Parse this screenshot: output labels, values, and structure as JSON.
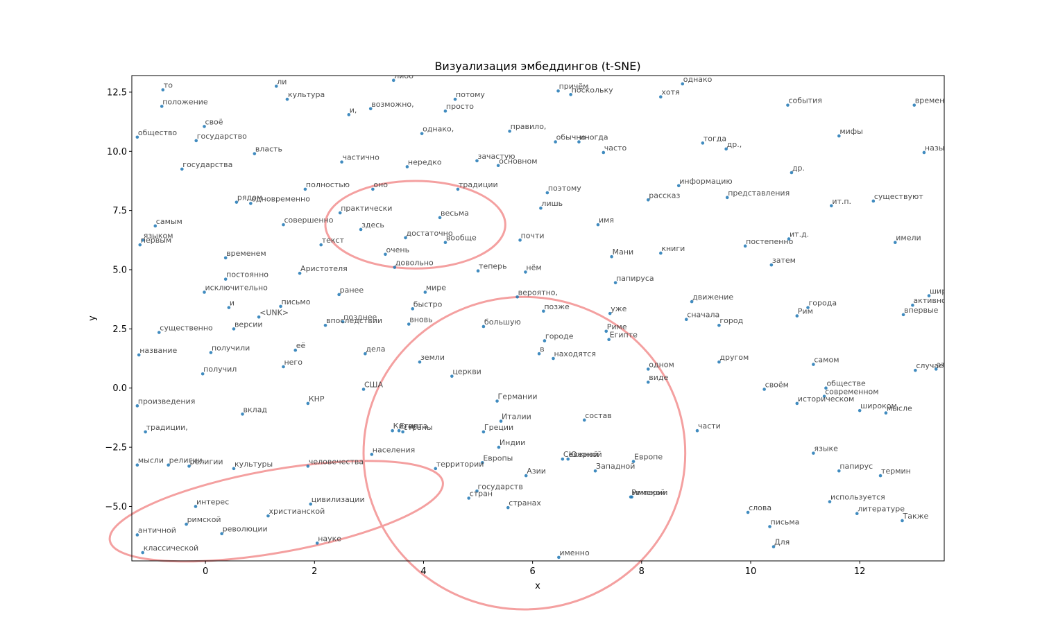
{
  "chart_data": {
    "type": "scatter",
    "title": "Визуализация эмбеддингов (t-SNE)",
    "xlabel": "x",
    "ylabel": "y",
    "xlim": [
      -1.35,
      13.55
    ],
    "ylim": [
      -7.3,
      13.2
    ],
    "xticks": [
      0,
      2,
      4,
      6,
      8,
      10,
      12
    ],
    "yticks": [
      -5.0,
      -2.5,
      0.0,
      2.5,
      5.0,
      7.5,
      10.0,
      12.5
    ],
    "xtick_labels": [
      "0",
      "2",
      "4",
      "6",
      "8",
      "10",
      "12"
    ],
    "ytick_labels": [
      "−5.0",
      "−2.5",
      "0.0",
      "2.5",
      "5.0",
      "7.5",
      "10.0",
      "12.5"
    ],
    "grid": false,
    "point_color": "#1f77b4",
    "highlight_color": "#f4a0a0",
    "highlight_ellipses": [
      {
        "cx": 3.85,
        "cy": 6.9,
        "rx": 1.65,
        "ry": 1.85,
        "rotation": 0
      },
      {
        "cx": 5.85,
        "cy": -2.75,
        "rx": 2.95,
        "ry": 6.6,
        "rotation": 0
      },
      {
        "cx": 1.3,
        "cy": -5.2,
        "rx": 3.1,
        "ry": 1.75,
        "rotation": 10
      }
    ],
    "points": [
      {
        "label": "то",
        "x": -0.78,
        "y": 12.6
      },
      {
        "label": "ли",
        "x": 1.3,
        "y": 12.75
      },
      {
        "label": "либо",
        "x": 3.45,
        "y": 13.0
      },
      {
        "label": "культура",
        "x": 1.5,
        "y": 12.2
      },
      {
        "label": "положение",
        "x": -0.8,
        "y": 11.9
      },
      {
        "label": "своё",
        "x": -0.02,
        "y": 11.05
      },
      {
        "label": "и,",
        "x": 2.63,
        "y": 11.55
      },
      {
        "label": "возможно,",
        "x": 3.03,
        "y": 11.8
      },
      {
        "label": "потому",
        "x": 4.58,
        "y": 12.2
      },
      {
        "label": "просто",
        "x": 4.4,
        "y": 11.7
      },
      {
        "label": "причём",
        "x": 6.47,
        "y": 12.55
      },
      {
        "label": "поскольку",
        "x": 6.7,
        "y": 12.4
      },
      {
        "label": "хотя",
        "x": 8.35,
        "y": 12.3
      },
      {
        "label": "однако",
        "x": 8.75,
        "y": 12.85
      },
      {
        "label": "события",
        "x": 10.68,
        "y": 11.95
      },
      {
        "label": "времена",
        "x": 13.0,
        "y": 11.95
      },
      {
        "label": "общество",
        "x": -1.25,
        "y": 10.6
      },
      {
        "label": "государство",
        "x": -0.17,
        "y": 10.45
      },
      {
        "label": "однако,",
        "x": 3.97,
        "y": 10.75
      },
      {
        "label": "правило,",
        "x": 5.58,
        "y": 10.85
      },
      {
        "label": "обычно",
        "x": 6.42,
        "y": 10.4
      },
      {
        "label": "иногда",
        "x": 6.85,
        "y": 10.4
      },
      {
        "label": "тогда",
        "x": 9.12,
        "y": 10.35
      },
      {
        "label": "др.,",
        "x": 9.55,
        "y": 10.1
      },
      {
        "label": "мифы",
        "x": 11.62,
        "y": 10.65
      },
      {
        "label": "власть",
        "x": 0.9,
        "y": 9.9
      },
      {
        "label": "часто",
        "x": 7.3,
        "y": 9.95
      },
      {
        "label": "называют",
        "x": 13.18,
        "y": 9.95
      },
      {
        "label": "частично",
        "x": 2.5,
        "y": 9.55
      },
      {
        "label": "зачастую",
        "x": 4.98,
        "y": 9.6
      },
      {
        "label": "нередко",
        "x": 3.7,
        "y": 9.35
      },
      {
        "label": "основном",
        "x": 5.37,
        "y": 9.4
      },
      {
        "label": "государства",
        "x": -0.43,
        "y": 9.25
      },
      {
        "label": "др.",
        "x": 10.75,
        "y": 9.1
      },
      {
        "label": "полностью",
        "x": 1.83,
        "y": 8.4
      },
      {
        "label": "оно",
        "x": 3.07,
        "y": 8.4
      },
      {
        "label": "традиции",
        "x": 4.63,
        "y": 8.4
      },
      {
        "label": "поэтому",
        "x": 6.27,
        "y": 8.25
      },
      {
        "label": "информацию",
        "x": 8.68,
        "y": 8.55
      },
      {
        "label": "рассказ",
        "x": 8.12,
        "y": 7.95
      },
      {
        "label": "представления",
        "x": 9.57,
        "y": 8.05
      },
      {
        "label": "рядом",
        "x": 0.57,
        "y": 7.85
      },
      {
        "label": "одновременно",
        "x": 0.83,
        "y": 7.8
      },
      {
        "label": "лишь",
        "x": 6.15,
        "y": 7.6
      },
      {
        "label": "ит.п.",
        "x": 11.48,
        "y": 7.7
      },
      {
        "label": "существуют",
        "x": 12.25,
        "y": 7.9
      },
      {
        "label": "практически",
        "x": 2.47,
        "y": 7.4
      },
      {
        "label": "весьма",
        "x": 4.3,
        "y": 7.2
      },
      {
        "label": "самым",
        "x": -0.92,
        "y": 6.85
      },
      {
        "label": "совершенно",
        "x": 1.43,
        "y": 6.9
      },
      {
        "label": "здесь",
        "x": 2.85,
        "y": 6.7
      },
      {
        "label": "имя",
        "x": 7.2,
        "y": 6.9
      },
      {
        "label": "достаточно",
        "x": 3.67,
        "y": 6.35
      },
      {
        "label": "вообще",
        "x": 4.4,
        "y": 6.15
      },
      {
        "label": "почти",
        "x": 5.77,
        "y": 6.25
      },
      {
        "label": "ит.д.",
        "x": 10.7,
        "y": 6.3
      },
      {
        "label": "языком",
        "x": -1.15,
        "y": 6.25
      },
      {
        "label": "первым",
        "x": -1.2,
        "y": 6.05
      },
      {
        "label": "текст",
        "x": 2.12,
        "y": 6.05
      },
      {
        "label": "постепенно",
        "x": 9.9,
        "y": 6.0
      },
      {
        "label": "имели",
        "x": 12.65,
        "y": 6.15
      },
      {
        "label": "очень",
        "x": 3.3,
        "y": 5.65
      },
      {
        "label": "Мани",
        "x": 7.45,
        "y": 5.55
      },
      {
        "label": "книги",
        "x": 8.35,
        "y": 5.7
      },
      {
        "label": "временем",
        "x": 0.37,
        "y": 5.5
      },
      {
        "label": "затем",
        "x": 10.38,
        "y": 5.2
      },
      {
        "label": "довольно",
        "x": 3.47,
        "y": 5.1
      },
      {
        "label": "Аристотеля",
        "x": 1.73,
        "y": 4.85
      },
      {
        "label": "теперь",
        "x": 5.0,
        "y": 4.95
      },
      {
        "label": "нём",
        "x": 5.87,
        "y": 4.9
      },
      {
        "label": "постоянно",
        "x": 0.37,
        "y": 4.6
      },
      {
        "label": "папируса",
        "x": 7.52,
        "y": 4.45
      },
      {
        "label": "исключительно",
        "x": -0.02,
        "y": 4.05
      },
      {
        "label": "ранее",
        "x": 2.45,
        "y": 3.95
      },
      {
        "label": "мире",
        "x": 4.03,
        "y": 4.05
      },
      {
        "label": "вероятно,",
        "x": 5.72,
        "y": 3.85
      },
      {
        "label": "движение",
        "x": 8.92,
        "y": 3.65
      },
      {
        "label": "широко",
        "x": 13.27,
        "y": 3.9
      },
      {
        "label": "и",
        "x": 0.43,
        "y": 3.4
      },
      {
        "label": "письмо",
        "x": 1.38,
        "y": 3.45
      },
      {
        "label": "быстро",
        "x": 3.8,
        "y": 3.35
      },
      {
        "label": "позже",
        "x": 6.2,
        "y": 3.25
      },
      {
        "label": "уже",
        "x": 7.42,
        "y": 3.15
      },
      {
        "label": "города",
        "x": 11.05,
        "y": 3.4
      },
      {
        "label": "активно",
        "x": 12.97,
        "y": 3.5
      },
      {
        "label": "<UNK>",
        "x": 0.98,
        "y": 3.0
      },
      {
        "label": "Рим",
        "x": 10.85,
        "y": 3.05
      },
      {
        "label": "впервые",
        "x": 12.8,
        "y": 3.1
      },
      {
        "label": "позднее",
        "x": 2.52,
        "y": 2.8
      },
      {
        "label": "впоследствии",
        "x": 2.2,
        "y": 2.65
      },
      {
        "label": "вновь",
        "x": 3.73,
        "y": 2.7
      },
      {
        "label": "большую",
        "x": 5.1,
        "y": 2.6
      },
      {
        "label": "сначала",
        "x": 8.82,
        "y": 2.9
      },
      {
        "label": "город",
        "x": 9.42,
        "y": 2.65
      },
      {
        "label": "версии",
        "x": 0.52,
        "y": 2.5
      },
      {
        "label": "существенно",
        "x": -0.85,
        "y": 2.35
      },
      {
        "label": "Риме",
        "x": 7.35,
        "y": 2.4
      },
      {
        "label": "Египте",
        "x": 7.4,
        "y": 2.05
      },
      {
        "label": "городе",
        "x": 6.22,
        "y": 2.0
      },
      {
        "label": "её",
        "x": 1.65,
        "y": 1.6
      },
      {
        "label": "получили",
        "x": 0.1,
        "y": 1.5
      },
      {
        "label": "дела",
        "x": 2.93,
        "y": 1.45
      },
      {
        "label": "в",
        "x": 6.12,
        "y": 1.45
      },
      {
        "label": "находятся",
        "x": 6.38,
        "y": 1.25
      },
      {
        "label": "название",
        "x": -1.22,
        "y": 1.4
      },
      {
        "label": "земли",
        "x": 3.93,
        "y": 1.1
      },
      {
        "label": "другом",
        "x": 9.42,
        "y": 1.1
      },
      {
        "label": "самом",
        "x": 11.15,
        "y": 1.0
      },
      {
        "label": "него",
        "x": 1.43,
        "y": 0.9
      },
      {
        "label": "одном",
        "x": 8.12,
        "y": 0.8
      },
      {
        "label": "случае",
        "x": 13.02,
        "y": 0.75
      },
      {
        "label": "этом",
        "x": 13.4,
        "y": 0.8
      },
      {
        "label": "получил",
        "x": -0.05,
        "y": 0.6
      },
      {
        "label": "церкви",
        "x": 4.52,
        "y": 0.5
      },
      {
        "label": "виде",
        "x": 8.12,
        "y": 0.25
      },
      {
        "label": "США",
        "x": 2.9,
        "y": -0.05
      },
      {
        "label": "своём",
        "x": 10.25,
        "y": -0.05
      },
      {
        "label": "обществе",
        "x": 11.38,
        "y": 0.0
      },
      {
        "label": "современном",
        "x": 11.35,
        "y": -0.35
      },
      {
        "label": "Германии",
        "x": 5.35,
        "y": -0.55
      },
      {
        "label": "КНР",
        "x": 1.88,
        "y": -0.65
      },
      {
        "label": "историческом",
        "x": 10.85,
        "y": -0.65
      },
      {
        "label": "произведения",
        "x": -1.25,
        "y": -0.75
      },
      {
        "label": "широком",
        "x": 12.0,
        "y": -0.95
      },
      {
        "label": "мысле",
        "x": 12.48,
        "y": -1.05
      },
      {
        "label": "вклад",
        "x": 0.68,
        "y": -1.1
      },
      {
        "label": "состав",
        "x": 6.95,
        "y": -1.35
      },
      {
        "label": "Италии",
        "x": 5.42,
        "y": -1.4
      },
      {
        "label": "Китая",
        "x": 3.43,
        "y": -1.8
      },
      {
        "label": "Египта",
        "x": 3.55,
        "y": -1.8
      },
      {
        "label": "страны",
        "x": 3.62,
        "y": -1.85
      },
      {
        "label": "Греции",
        "x": 5.1,
        "y": -1.85
      },
      {
        "label": "части",
        "x": 9.02,
        "y": -1.8
      },
      {
        "label": "традиции,",
        "x": -1.1,
        "y": -1.85
      },
      {
        "label": "Индии",
        "x": 5.38,
        "y": -2.5
      },
      {
        "label": "населения",
        "x": 3.05,
        "y": -2.8
      },
      {
        "label": "языке",
        "x": 11.15,
        "y": -2.75
      },
      {
        "label": "Северной",
        "x": 6.55,
        "y": -3.0
      },
      {
        "label": "Южной",
        "x": 6.65,
        "y": -3.0
      },
      {
        "label": "Европе",
        "x": 7.85,
        "y": -3.1
      },
      {
        "label": "Европы",
        "x": 5.08,
        "y": -3.15
      },
      {
        "label": "мысли",
        "x": -1.25,
        "y": -3.25
      },
      {
        "label": "религии,",
        "x": -0.68,
        "y": -3.25
      },
      {
        "label": "религии",
        "x": -0.3,
        "y": -3.3
      },
      {
        "label": "человечества",
        "x": 1.88,
        "y": -3.3
      },
      {
        "label": "культуры",
        "x": 0.52,
        "y": -3.4
      },
      {
        "label": "территории",
        "x": 4.22,
        "y": -3.4
      },
      {
        "label": "Западной",
        "x": 7.15,
        "y": -3.5
      },
      {
        "label": "папирус",
        "x": 11.62,
        "y": -3.5
      },
      {
        "label": "Азии",
        "x": 5.88,
        "y": -3.7
      },
      {
        "label": "термин",
        "x": 12.38,
        "y": -3.7
      },
      {
        "label": "государств",
        "x": 4.98,
        "y": -4.35
      },
      {
        "label": "стран",
        "x": 4.83,
        "y": -4.65
      },
      {
        "label": "Римской",
        "x": 7.8,
        "y": -4.6
      },
      {
        "label": "империи",
        "x": 7.82,
        "y": -4.6
      },
      {
        "label": "используется",
        "x": 11.45,
        "y": -4.8
      },
      {
        "label": "цивилизации",
        "x": 1.93,
        "y": -4.9
      },
      {
        "label": "интерес",
        "x": -0.18,
        "y": -5.0
      },
      {
        "label": "странах",
        "x": 5.55,
        "y": -5.05
      },
      {
        "label": "слова",
        "x": 9.95,
        "y": -5.25
      },
      {
        "label": "литературе",
        "x": 11.95,
        "y": -5.3
      },
      {
        "label": "христианской",
        "x": 1.15,
        "y": -5.4
      },
      {
        "label": "Также",
        "x": 12.78,
        "y": -5.6
      },
      {
        "label": "римской",
        "x": -0.35,
        "y": -5.75
      },
      {
        "label": "письма",
        "x": 10.35,
        "y": -5.85
      },
      {
        "label": "античной",
        "x": -1.25,
        "y": -6.2
      },
      {
        "label": "революции",
        "x": 0.3,
        "y": -6.15
      },
      {
        "label": "науке",
        "x": 2.05,
        "y": -6.55
      },
      {
        "label": "Для",
        "x": 10.42,
        "y": -6.7
      },
      {
        "label": "классической",
        "x": -1.15,
        "y": -6.95
      },
      {
        "label": "именно",
        "x": 6.48,
        "y": -7.15
      }
    ]
  }
}
